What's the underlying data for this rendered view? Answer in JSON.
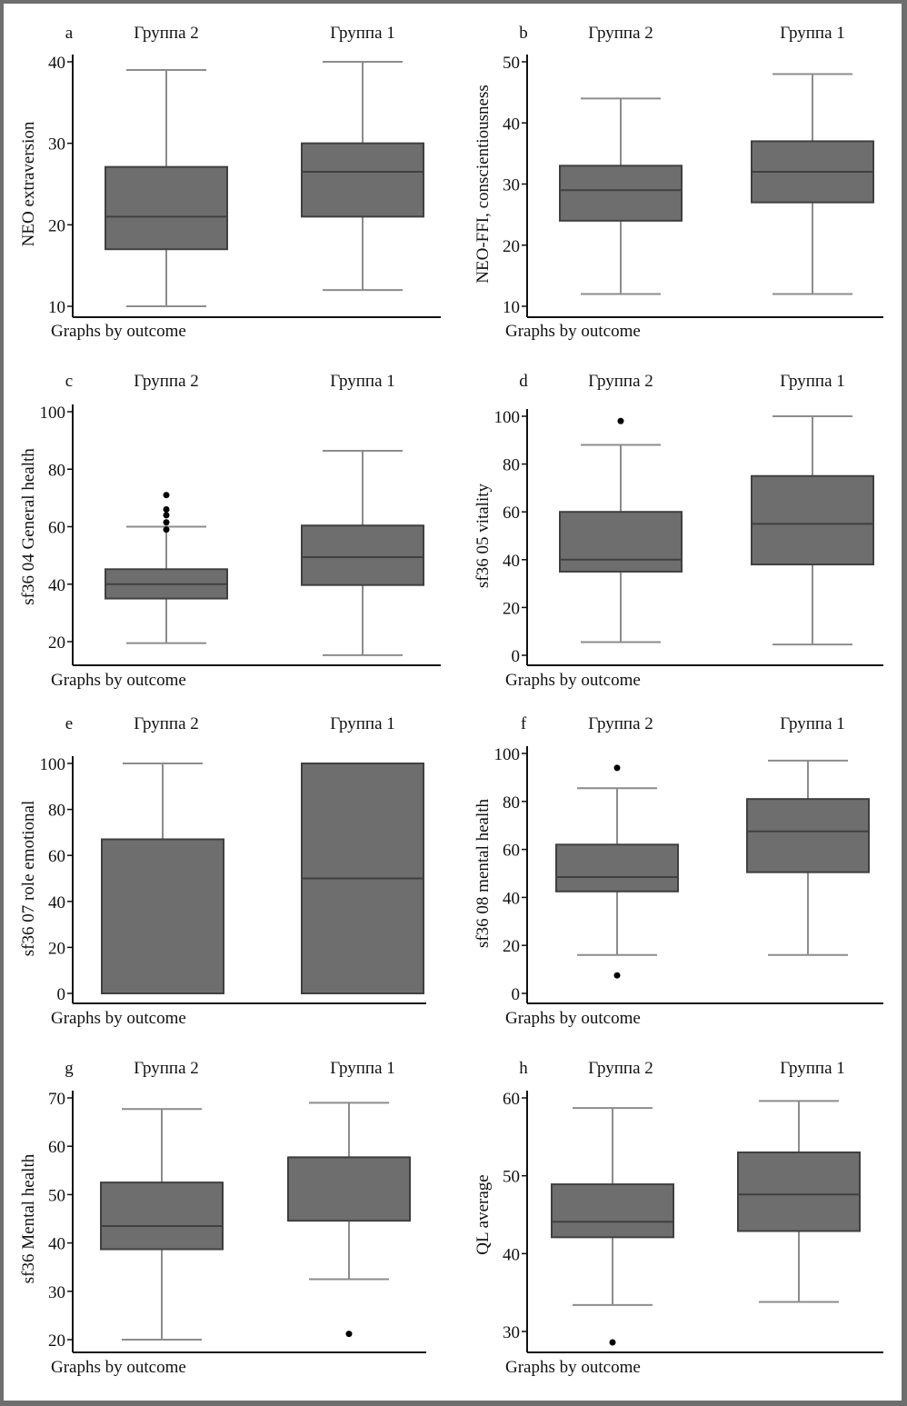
{
  "chart_data": [
    {
      "type": "box",
      "panel_label": "a",
      "ylabel": "NEO extraversion",
      "footer": "Graphs by outcome",
      "ylim": [
        10,
        40
      ],
      "yticks": [
        10,
        20,
        30,
        40
      ],
      "groups": [
        {
          "name": "Группа 2",
          "whisker_low": 10,
          "q1": 17,
          "median": 21,
          "q3": 27.1,
          "whisker_high": 39,
          "outliers": []
        },
        {
          "name": "Группа 1",
          "whisker_low": 12,
          "q1": 21,
          "median": 26.5,
          "q3": 30,
          "whisker_high": 40,
          "outliers": []
        }
      ]
    },
    {
      "type": "box",
      "panel_label": "b",
      "ylabel": "NEO-FFI, conscientiousness",
      "footer": "Graphs by outcome",
      "ylim": [
        10,
        50
      ],
      "yticks": [
        10,
        20,
        30,
        40,
        50
      ],
      "groups": [
        {
          "name": "Группа 2",
          "whisker_low": 12,
          "q1": 24,
          "median": 29,
          "q3": 33,
          "whisker_high": 44,
          "outliers": []
        },
        {
          "name": "Группа 1",
          "whisker_low": 12,
          "q1": 27,
          "median": 32,
          "q3": 37,
          "whisker_high": 48,
          "outliers": []
        }
      ]
    },
    {
      "type": "box",
      "panel_label": "c",
      "ylabel": "sf36 04 General health",
      "footer": "Graphs by outcome",
      "ylim": [
        20,
        100
      ],
      "yticks": [
        20,
        40,
        60,
        80,
        100
      ],
      "groups": [
        {
          "name": "Группа 2",
          "whisker_low": 19.5,
          "q1": 35,
          "median": 40,
          "q3": 45.2,
          "whisker_high": 60,
          "outliers": [
            59,
            61.5,
            64,
            66,
            71
          ]
        },
        {
          "name": "Группа 1",
          "whisker_low": 15.3,
          "q1": 39.7,
          "median": 49.4,
          "q3": 60.4,
          "whisker_high": 86.4,
          "outliers": []
        }
      ]
    },
    {
      "type": "box",
      "panel_label": "d",
      "ylabel": "sf36 05 vitality",
      "footer": "Graphs by outcome",
      "ylim": [
        0,
        100
      ],
      "yticks": [
        0,
        20,
        40,
        60,
        80,
        100
      ],
      "groups": [
        {
          "name": "Группа 2",
          "whisker_low": 5.5,
          "q1": 35,
          "median": 40,
          "q3": 60,
          "whisker_high": 88,
          "outliers": [
            98
          ]
        },
        {
          "name": "Группа 1",
          "whisker_low": 4.5,
          "q1": 38,
          "median": 55,
          "q3": 75,
          "whisker_high": 100,
          "outliers": []
        }
      ]
    },
    {
      "type": "box",
      "panel_label": "e",
      "ylabel": "sf36 07 role emotional",
      "footer": "Graphs by outcome",
      "ylim": [
        0,
        100
      ],
      "yticks": [
        0,
        20,
        40,
        60,
        80,
        100
      ],
      "groups": [
        {
          "name": "Группа 2",
          "whisker_low": 0,
          "q1": 0,
          "median": 0,
          "q3": 67,
          "whisker_high": 100,
          "outliers": []
        },
        {
          "name": "Группа 1",
          "whisker_low": 0,
          "q1": 0,
          "median": 50,
          "q3": 100,
          "whisker_high": 100,
          "outliers": []
        }
      ]
    },
    {
      "type": "box",
      "panel_label": "f",
      "ylabel": "sf36 08 mental health",
      "footer": "Graphs by outcome",
      "ylim": [
        0,
        100
      ],
      "yticks": [
        0,
        20,
        40,
        60,
        80,
        100
      ],
      "groups": [
        {
          "name": "Группа 2",
          "whisker_low": 16,
          "q1": 42.5,
          "median": 48.5,
          "q3": 62,
          "whisker_high": 85.5,
          "outliers": [
            94,
            7.5
          ]
        },
        {
          "name": "Группа 1",
          "whisker_low": 16,
          "q1": 50.5,
          "median": 67.5,
          "q3": 81,
          "whisker_high": 97,
          "outliers": []
        }
      ]
    },
    {
      "type": "box",
      "panel_label": "g",
      "ylabel": "sf36 Mental health",
      "footer": "Graphs by outcome",
      "ylim": [
        20,
        70
      ],
      "yticks": [
        20,
        30,
        40,
        50,
        60,
        70
      ],
      "groups": [
        {
          "name": "Группа 2",
          "whisker_low": 20,
          "q1": 38.7,
          "median": 43.5,
          "q3": 52.5,
          "whisker_high": 67.7,
          "outliers": []
        },
        {
          "name": "Группа 1",
          "whisker_low": 32.5,
          "q1": 44.6,
          "median": 57.7,
          "q3": 57.7,
          "whisker_high": 69,
          "outliers": [
            21.2
          ]
        }
      ]
    },
    {
      "type": "box",
      "panel_label": "h",
      "ylabel": "QL average",
      "footer": "Graphs by outcome",
      "ylim": [
        30,
        60
      ],
      "yticks": [
        30,
        40,
        50,
        60
      ],
      "groups": [
        {
          "name": "Группа 2",
          "whisker_low": 33.4,
          "q1": 42.1,
          "median": 44.1,
          "q3": 48.9,
          "whisker_high": 58.7,
          "outliers": [
            28.6
          ]
        },
        {
          "name": "Группа 1",
          "whisker_low": 33.8,
          "q1": 42.9,
          "median": 47.6,
          "q3": 53,
          "whisker_high": 59.6,
          "outliers": []
        }
      ]
    }
  ],
  "colors": {
    "box_fill": "#6e6e6e",
    "box_stroke": "#404040",
    "whisker": "#8c8c8c",
    "outlier": "#000000",
    "axis": "#111111",
    "frame": "#6e6e6e"
  }
}
